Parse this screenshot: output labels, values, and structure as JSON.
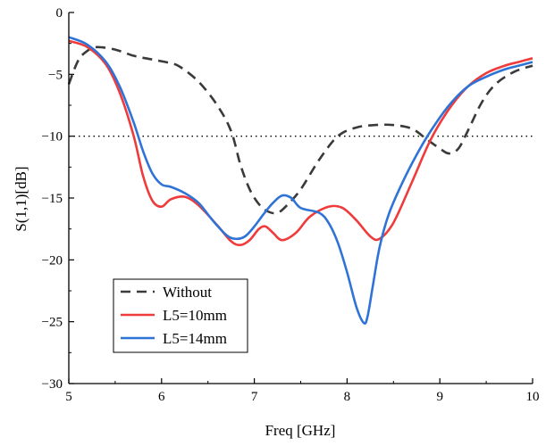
{
  "chart_data": {
    "type": "line",
    "xlabel": "Freq [GHz]",
    "ylabel": "S(1,1)[dB]",
    "xlim": [
      5,
      10
    ],
    "ylim": [
      -30,
      0
    ],
    "xticks": [
      5,
      6,
      7,
      8,
      9,
      10
    ],
    "yticks": [
      0,
      -5,
      -10,
      -15,
      -20,
      -25,
      -30
    ],
    "xtick_labels": [
      "5",
      "6",
      "7",
      "8",
      "9",
      "10"
    ],
    "ytick_labels": [
      "0",
      "−5",
      "−10",
      "−15",
      "−20",
      "−25",
      "−30"
    ],
    "reference_line": {
      "y": -10,
      "style": "dotted",
      "color": "#000000"
    },
    "legend": {
      "placement": "bottom-left",
      "frame": true
    },
    "grid": false,
    "series": [
      {
        "name": "Without",
        "color": "#3a3a3a",
        "style": "dashed",
        "x": [
          5.0,
          5.1,
          5.2,
          5.3,
          5.5,
          5.7,
          5.9,
          6.1,
          6.2,
          6.4,
          6.6,
          6.75,
          6.85,
          6.95,
          7.05,
          7.15,
          7.25,
          7.35,
          7.5,
          7.7,
          7.9,
          8.1,
          8.3,
          8.5,
          8.7,
          8.85,
          9.0,
          9.1,
          9.2,
          9.3,
          9.45,
          9.6,
          9.8,
          10.0
        ],
        "y": [
          -5.8,
          -3.9,
          -3.1,
          -2.8,
          -3.0,
          -3.5,
          -3.8,
          -4.1,
          -4.4,
          -5.6,
          -7.5,
          -9.6,
          -12.3,
          -14.3,
          -15.5,
          -16.1,
          -16.2,
          -15.6,
          -14.3,
          -11.9,
          -10.0,
          -9.3,
          -9.1,
          -9.1,
          -9.4,
          -10.2,
          -11.0,
          -11.4,
          -11.0,
          -9.6,
          -7.3,
          -5.8,
          -4.8,
          -4.3
        ]
      },
      {
        "name": "L5=10mm",
        "color": "#ef3b3b",
        "style": "solid",
        "x": [
          5.0,
          5.2,
          5.4,
          5.55,
          5.7,
          5.8,
          5.9,
          6.0,
          6.1,
          6.25,
          6.4,
          6.6,
          6.75,
          6.85,
          6.95,
          7.05,
          7.12,
          7.2,
          7.3,
          7.45,
          7.6,
          7.8,
          7.95,
          8.1,
          8.25,
          8.35,
          8.5,
          8.7,
          8.9,
          9.1,
          9.3,
          9.5,
          9.7,
          9.85,
          10.0
        ],
        "y": [
          -2.3,
          -2.8,
          -4.2,
          -6.5,
          -10.0,
          -13.2,
          -15.2,
          -15.7,
          -15.1,
          -14.9,
          -15.6,
          -17.2,
          -18.5,
          -18.8,
          -18.4,
          -17.5,
          -17.3,
          -17.8,
          -18.4,
          -17.8,
          -16.5,
          -15.7,
          -15.8,
          -16.8,
          -18.1,
          -18.3,
          -17.0,
          -13.7,
          -10.3,
          -7.8,
          -6.0,
          -4.9,
          -4.3,
          -4.0,
          -3.7
        ]
      },
      {
        "name": "L5=14mm",
        "color": "#2f73d7",
        "style": "solid",
        "x": [
          5.0,
          5.2,
          5.4,
          5.55,
          5.7,
          5.8,
          5.9,
          6.0,
          6.1,
          6.25,
          6.4,
          6.55,
          6.7,
          6.8,
          6.9,
          7.0,
          7.1,
          7.2,
          7.3,
          7.4,
          7.5,
          7.7,
          7.8,
          7.9,
          8.0,
          8.1,
          8.18,
          8.22,
          8.28,
          8.35,
          8.45,
          8.6,
          8.75,
          8.9,
          9.1,
          9.3,
          9.5,
          9.7,
          9.85,
          10.0
        ],
        "y": [
          -2.0,
          -2.6,
          -4.0,
          -6.0,
          -8.9,
          -11.2,
          -13.0,
          -13.9,
          -14.1,
          -14.6,
          -15.4,
          -16.8,
          -18.0,
          -18.3,
          -18.1,
          -17.3,
          -16.3,
          -15.4,
          -14.8,
          -15.0,
          -15.8,
          -16.2,
          -17.0,
          -18.6,
          -21.0,
          -23.8,
          -25.1,
          -24.6,
          -22.0,
          -19.0,
          -16.3,
          -13.7,
          -11.5,
          -9.6,
          -7.5,
          -6.0,
          -5.2,
          -4.6,
          -4.3,
          -4.0
        ]
      }
    ]
  }
}
